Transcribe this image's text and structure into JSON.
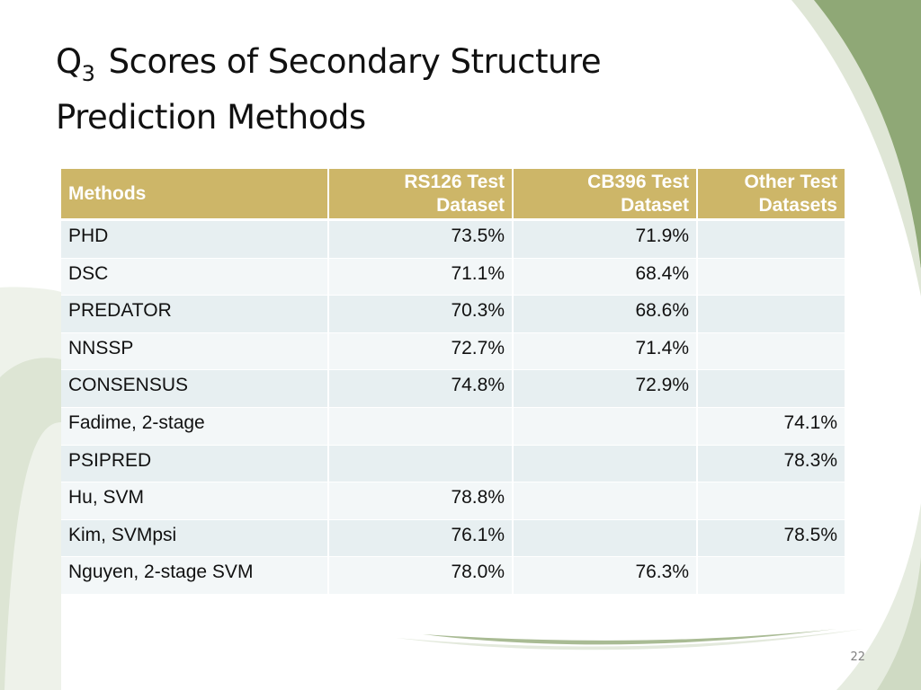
{
  "slide": {
    "title_q": "Q",
    "title_sub": "3",
    "title_line1_rest": "Scores of Secondary Structure",
    "title_line2": "Prediction Methods",
    "page_number": "22"
  },
  "table": {
    "headers": [
      "Methods",
      "RS126 Test Dataset",
      "CB396 Test Dataset",
      "Other Test Datasets"
    ],
    "header_lines": [
      [
        "Methods"
      ],
      [
        "RS126 Test",
        "Dataset"
      ],
      [
        "CB396 Test",
        "Dataset"
      ],
      [
        "Other Test",
        "Datasets"
      ]
    ],
    "rows": [
      [
        "PHD",
        "73.5%",
        "71.9%",
        ""
      ],
      [
        "DSC",
        "71.1%",
        "68.4%",
        ""
      ],
      [
        "PREDATOR",
        "70.3%",
        "68.6%",
        ""
      ],
      [
        "NNSSP",
        "72.7%",
        "71.4%",
        ""
      ],
      [
        "CONSENSUS",
        "74.8%",
        "72.9%",
        ""
      ],
      [
        "Fadime, 2-stage",
        "",
        "",
        "74.1%"
      ],
      [
        "PSIPRED",
        "",
        "",
        "78.3%"
      ],
      [
        "Hu, SVM",
        "78.8%",
        "",
        ""
      ],
      [
        "Kim, SVMpsi",
        "76.1%",
        "",
        "78.5%"
      ],
      [
        "Nguyen, 2-stage SVM",
        "78.0%",
        "76.3%",
        ""
      ]
    ]
  },
  "colors": {
    "header_bg": "#cdb668",
    "row_odd": "#e7eff1",
    "row_even": "#f3f7f8",
    "swoosh_green": "#8fa876",
    "swoosh_light": "#e6ece0"
  }
}
